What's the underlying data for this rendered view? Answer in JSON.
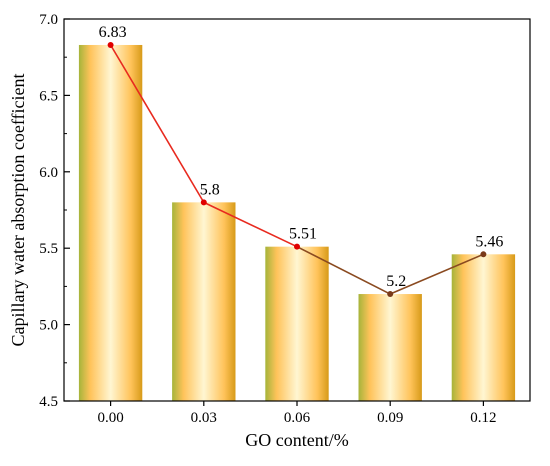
{
  "chart_data": {
    "type": "bar",
    "xlabel": "GO content/%",
    "ylabel": "Capillary water absorption coefficient",
    "categories": [
      "0.00",
      "0.03",
      "0.06",
      "0.09",
      "0.12"
    ],
    "values": [
      6.83,
      5.8,
      5.51,
      5.2,
      5.46
    ],
    "data_labels": [
      "6.83",
      "5.8",
      "5.51",
      "5.2",
      "5.46"
    ],
    "ylim": [
      4.5,
      7.0
    ],
    "yticks": [
      "4.5",
      "5.0",
      "5.5",
      "6.0",
      "6.5",
      "7.0"
    ],
    "overlay_line": true,
    "grid": false,
    "legend": "none",
    "colors": {
      "bar_center": "#fff6d2",
      "bar_mid": "#ffc35a",
      "bar_edge": "#d79a18",
      "bar_edge_green": "#a6b43a",
      "line": "#e82a1f",
      "line_tail": "#8a4a20",
      "marker": "#e00000",
      "marker_tail": "#7a3a1a"
    }
  }
}
